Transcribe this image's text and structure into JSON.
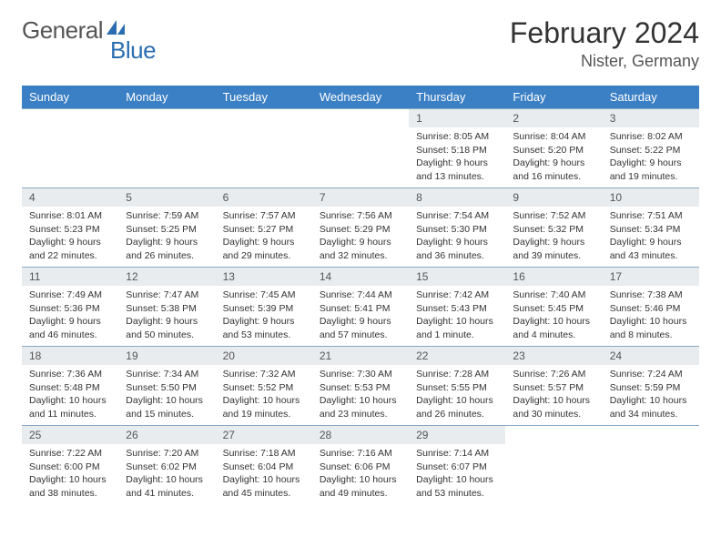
{
  "brand": {
    "part1": "General",
    "part2": "Blue"
  },
  "title": "February 2024",
  "location": "Nister, Germany",
  "colors": {
    "header_bg": "#3b7fc4",
    "daynum_bg": "#e9ecef",
    "border": "#8aa8c4",
    "brand_blue": "#2a6db0"
  },
  "weekdays": [
    "Sunday",
    "Monday",
    "Tuesday",
    "Wednesday",
    "Thursday",
    "Friday",
    "Saturday"
  ],
  "weeks": [
    [
      {
        "empty": true
      },
      {
        "empty": true
      },
      {
        "empty": true
      },
      {
        "empty": true
      },
      {
        "day": "1",
        "sunrise": "Sunrise: 8:05 AM",
        "sunset": "Sunset: 5:18 PM",
        "daylight": "Daylight: 9 hours and 13 minutes."
      },
      {
        "day": "2",
        "sunrise": "Sunrise: 8:04 AM",
        "sunset": "Sunset: 5:20 PM",
        "daylight": "Daylight: 9 hours and 16 minutes."
      },
      {
        "day": "3",
        "sunrise": "Sunrise: 8:02 AM",
        "sunset": "Sunset: 5:22 PM",
        "daylight": "Daylight: 9 hours and 19 minutes."
      }
    ],
    [
      {
        "day": "4",
        "sunrise": "Sunrise: 8:01 AM",
        "sunset": "Sunset: 5:23 PM",
        "daylight": "Daylight: 9 hours and 22 minutes."
      },
      {
        "day": "5",
        "sunrise": "Sunrise: 7:59 AM",
        "sunset": "Sunset: 5:25 PM",
        "daylight": "Daylight: 9 hours and 26 minutes."
      },
      {
        "day": "6",
        "sunrise": "Sunrise: 7:57 AM",
        "sunset": "Sunset: 5:27 PM",
        "daylight": "Daylight: 9 hours and 29 minutes."
      },
      {
        "day": "7",
        "sunrise": "Sunrise: 7:56 AM",
        "sunset": "Sunset: 5:29 PM",
        "daylight": "Daylight: 9 hours and 32 minutes."
      },
      {
        "day": "8",
        "sunrise": "Sunrise: 7:54 AM",
        "sunset": "Sunset: 5:30 PM",
        "daylight": "Daylight: 9 hours and 36 minutes."
      },
      {
        "day": "9",
        "sunrise": "Sunrise: 7:52 AM",
        "sunset": "Sunset: 5:32 PM",
        "daylight": "Daylight: 9 hours and 39 minutes."
      },
      {
        "day": "10",
        "sunrise": "Sunrise: 7:51 AM",
        "sunset": "Sunset: 5:34 PM",
        "daylight": "Daylight: 9 hours and 43 minutes."
      }
    ],
    [
      {
        "day": "11",
        "sunrise": "Sunrise: 7:49 AM",
        "sunset": "Sunset: 5:36 PM",
        "daylight": "Daylight: 9 hours and 46 minutes."
      },
      {
        "day": "12",
        "sunrise": "Sunrise: 7:47 AM",
        "sunset": "Sunset: 5:38 PM",
        "daylight": "Daylight: 9 hours and 50 minutes."
      },
      {
        "day": "13",
        "sunrise": "Sunrise: 7:45 AM",
        "sunset": "Sunset: 5:39 PM",
        "daylight": "Daylight: 9 hours and 53 minutes."
      },
      {
        "day": "14",
        "sunrise": "Sunrise: 7:44 AM",
        "sunset": "Sunset: 5:41 PM",
        "daylight": "Daylight: 9 hours and 57 minutes."
      },
      {
        "day": "15",
        "sunrise": "Sunrise: 7:42 AM",
        "sunset": "Sunset: 5:43 PM",
        "daylight": "Daylight: 10 hours and 1 minute."
      },
      {
        "day": "16",
        "sunrise": "Sunrise: 7:40 AM",
        "sunset": "Sunset: 5:45 PM",
        "daylight": "Daylight: 10 hours and 4 minutes."
      },
      {
        "day": "17",
        "sunrise": "Sunrise: 7:38 AM",
        "sunset": "Sunset: 5:46 PM",
        "daylight": "Daylight: 10 hours and 8 minutes."
      }
    ],
    [
      {
        "day": "18",
        "sunrise": "Sunrise: 7:36 AM",
        "sunset": "Sunset: 5:48 PM",
        "daylight": "Daylight: 10 hours and 11 minutes."
      },
      {
        "day": "19",
        "sunrise": "Sunrise: 7:34 AM",
        "sunset": "Sunset: 5:50 PM",
        "daylight": "Daylight: 10 hours and 15 minutes."
      },
      {
        "day": "20",
        "sunrise": "Sunrise: 7:32 AM",
        "sunset": "Sunset: 5:52 PM",
        "daylight": "Daylight: 10 hours and 19 minutes."
      },
      {
        "day": "21",
        "sunrise": "Sunrise: 7:30 AM",
        "sunset": "Sunset: 5:53 PM",
        "daylight": "Daylight: 10 hours and 23 minutes."
      },
      {
        "day": "22",
        "sunrise": "Sunrise: 7:28 AM",
        "sunset": "Sunset: 5:55 PM",
        "daylight": "Daylight: 10 hours and 26 minutes."
      },
      {
        "day": "23",
        "sunrise": "Sunrise: 7:26 AM",
        "sunset": "Sunset: 5:57 PM",
        "daylight": "Daylight: 10 hours and 30 minutes."
      },
      {
        "day": "24",
        "sunrise": "Sunrise: 7:24 AM",
        "sunset": "Sunset: 5:59 PM",
        "daylight": "Daylight: 10 hours and 34 minutes."
      }
    ],
    [
      {
        "day": "25",
        "sunrise": "Sunrise: 7:22 AM",
        "sunset": "Sunset: 6:00 PM",
        "daylight": "Daylight: 10 hours and 38 minutes."
      },
      {
        "day": "26",
        "sunrise": "Sunrise: 7:20 AM",
        "sunset": "Sunset: 6:02 PM",
        "daylight": "Daylight: 10 hours and 41 minutes."
      },
      {
        "day": "27",
        "sunrise": "Sunrise: 7:18 AM",
        "sunset": "Sunset: 6:04 PM",
        "daylight": "Daylight: 10 hours and 45 minutes."
      },
      {
        "day": "28",
        "sunrise": "Sunrise: 7:16 AM",
        "sunset": "Sunset: 6:06 PM",
        "daylight": "Daylight: 10 hours and 49 minutes."
      },
      {
        "day": "29",
        "sunrise": "Sunrise: 7:14 AM",
        "sunset": "Sunset: 6:07 PM",
        "daylight": "Daylight: 10 hours and 53 minutes."
      },
      {
        "empty": true
      },
      {
        "empty": true
      }
    ]
  ]
}
